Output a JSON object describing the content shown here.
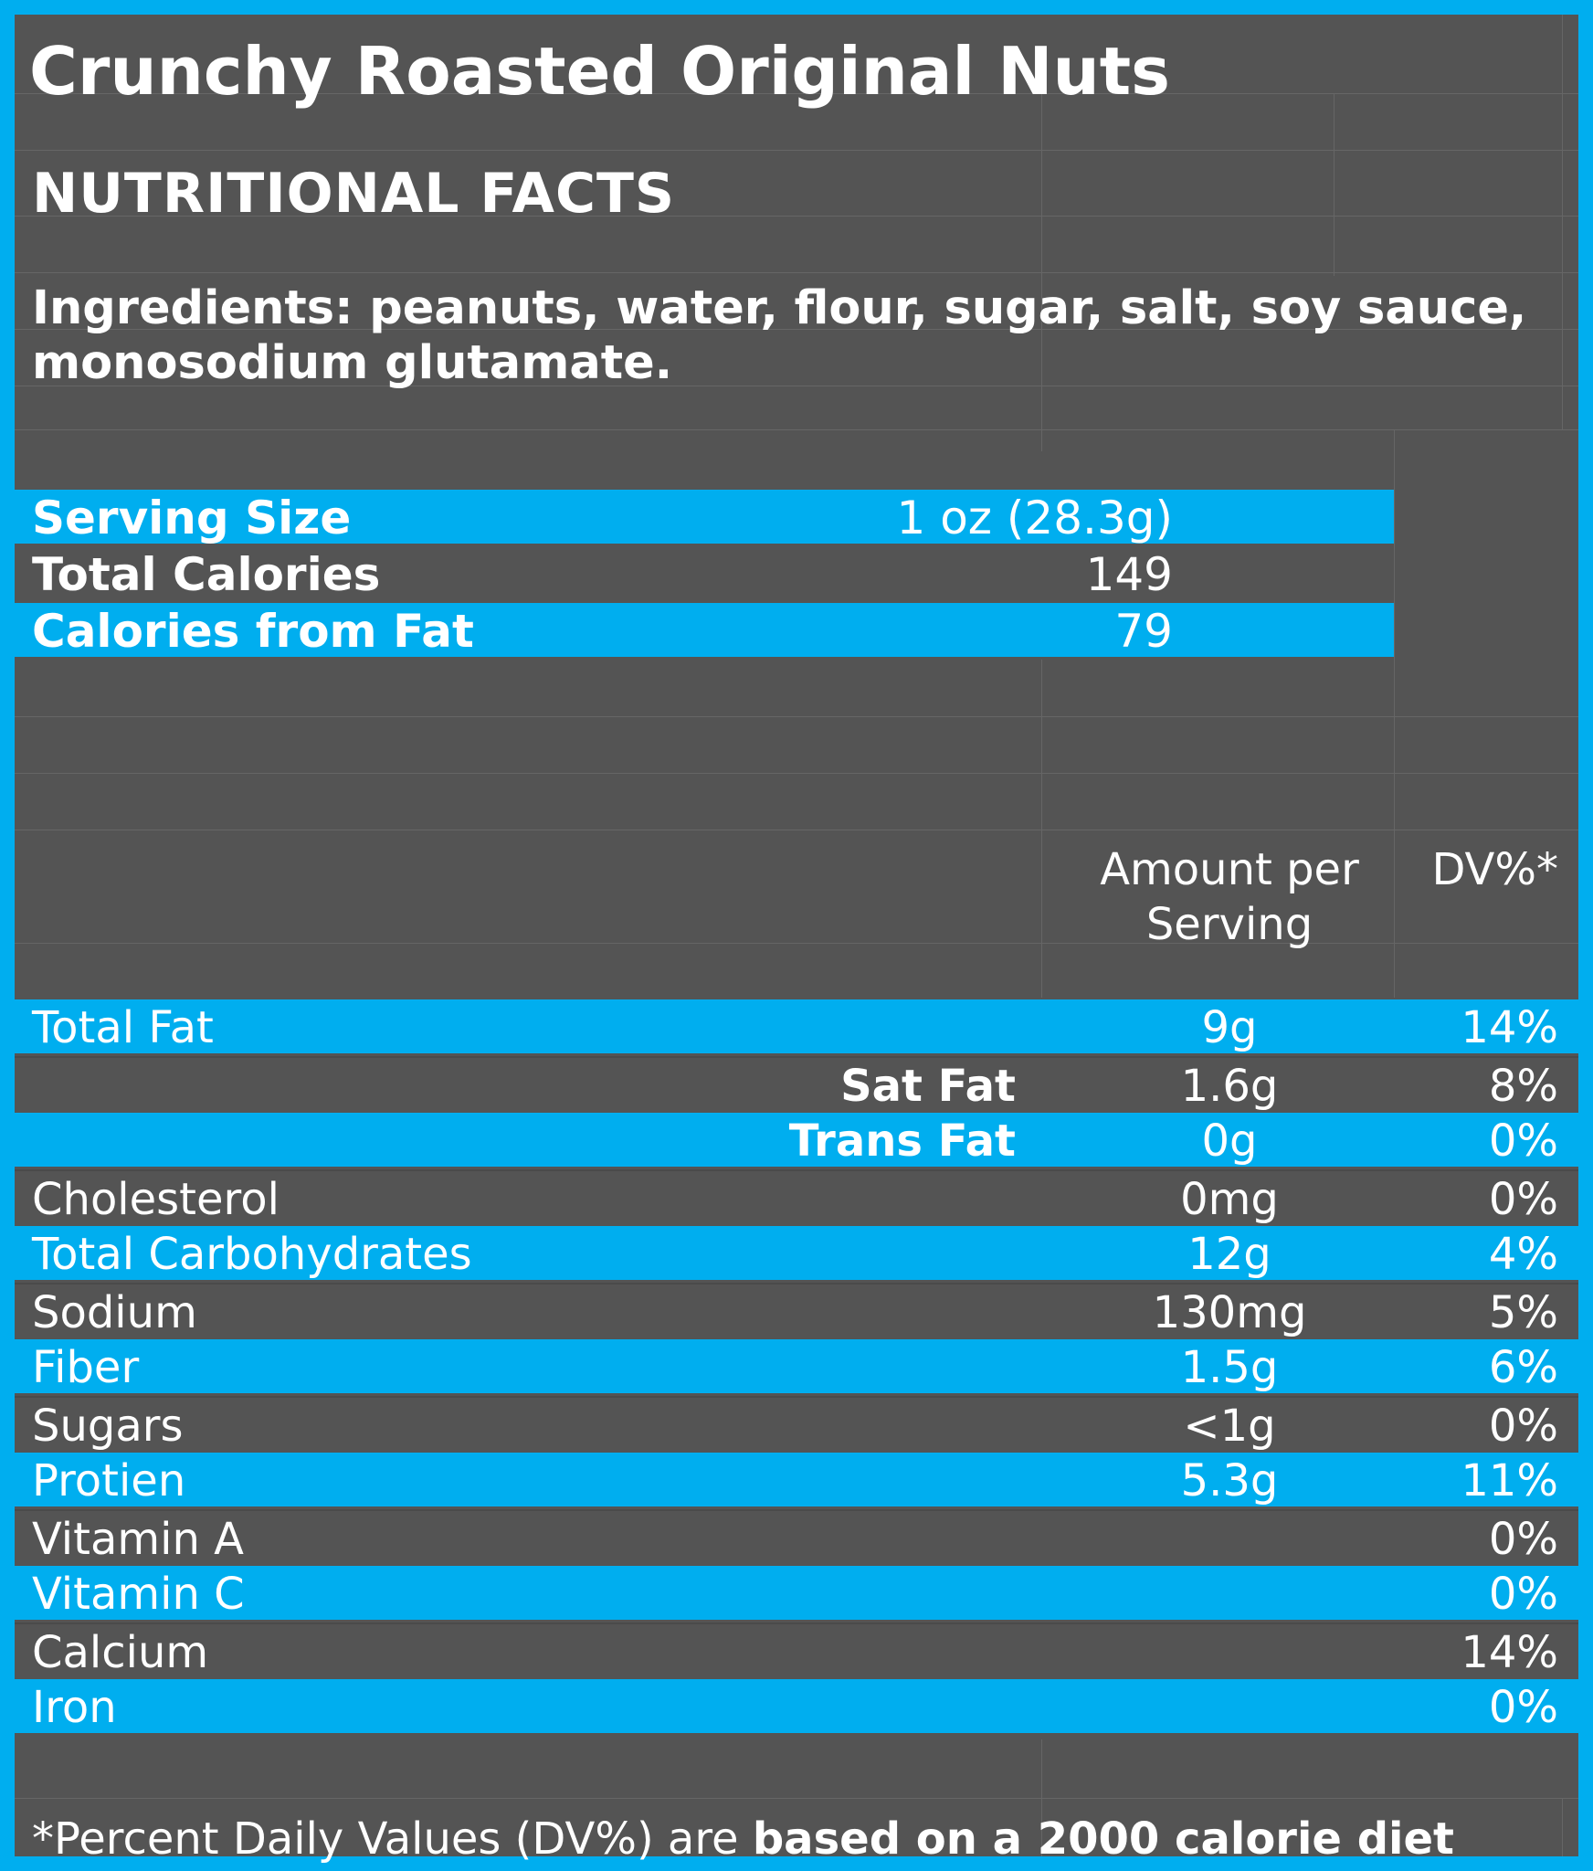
{
  "title": "Crunchy Roasted Original Nuts",
  "subtitle": "NUTRITIONAL FACTS",
  "ingredients": "Ingredients: peanuts, water, flour, sugar, salt, soy sauce, monosodium glutamate.",
  "serving": [
    {
      "label": "Serving Size",
      "value": "1 oz (28.3g)"
    },
    {
      "label": "Total Calories",
      "value": "149"
    },
    {
      "label": "Calories from Fat",
      "value": "79"
    }
  ],
  "columns": {
    "amount_line1": "Amount per",
    "amount_line2": "Serving",
    "dv": "DV%*"
  },
  "nutrients": [
    {
      "name": "Total Fat",
      "amount": "9g",
      "dv": "14%"
    },
    {
      "name": "Sat Fat",
      "amount": "1.6g",
      "dv": "8%"
    },
    {
      "name": "Trans Fat",
      "amount": "0g",
      "dv": "0%"
    },
    {
      "name": "Cholesterol",
      "amount": "0mg",
      "dv": "0%"
    },
    {
      "name": "Total Carbohydrates",
      "amount": "12g",
      "dv": "4%"
    },
    {
      "name": "Sodium",
      "amount": "130mg",
      "dv": "5%"
    },
    {
      "name": "Fiber",
      "amount": "1.5g",
      "dv": "6%"
    },
    {
      "name": "Sugars",
      "amount": "<1g",
      "dv": "0%"
    },
    {
      "name": "Protien",
      "amount": "5.3g",
      "dv": "11%"
    },
    {
      "name": "Vitamin A",
      "amount": "",
      "dv": "0%"
    },
    {
      "name": "Vitamin C",
      "amount": "",
      "dv": "0%"
    },
    {
      "name": "Calcium",
      "amount": "",
      "dv": "14%"
    },
    {
      "name": "Iron",
      "amount": "",
      "dv": "0%"
    }
  ],
  "footer": {
    "regular": "*Percent Daily Values (DV%) are ",
    "bold": "based on a 2000 calorie diet"
  },
  "colors": {
    "accent": "#00aeef",
    "panel": "#545454",
    "text": "#ffffff"
  }
}
